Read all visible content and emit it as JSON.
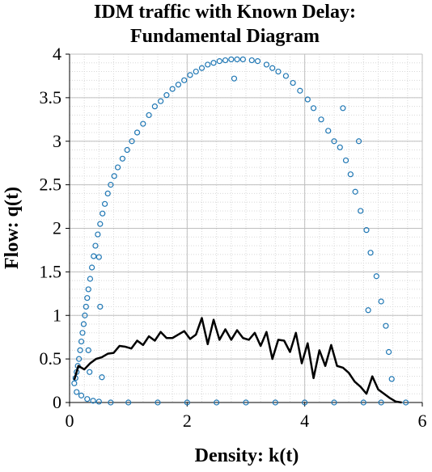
{
  "chart_data": {
    "type": "scatter",
    "title_line1": "IDM traffic with Known Delay:",
    "title_line2": "Fundamental Diagram",
    "xlabel": "Density: k(t)",
    "ylabel": "Flow: q(t)",
    "xlim": [
      0,
      6
    ],
    "ylim": [
      0,
      4
    ],
    "x_ticks": [
      0,
      2,
      4,
      6
    ],
    "y_ticks": [
      0,
      0.5,
      1,
      1.5,
      2,
      2.5,
      3,
      3.5,
      4
    ],
    "x_tick_labels": [
      "0",
      "2",
      "4",
      "6"
    ],
    "y_tick_labels": [
      "0",
      "0.5",
      "1",
      "1.5",
      "2",
      "2.5",
      "3",
      "3.5",
      "4"
    ],
    "grid": true,
    "series": [
      {
        "kind": "scatter",
        "color": "#1f77b4",
        "marker": "open-circle",
        "points": [
          [
            0.08,
            0.22
          ],
          [
            0.1,
            0.28
          ],
          [
            0.12,
            0.35
          ],
          [
            0.14,
            0.42
          ],
          [
            0.16,
            0.5
          ],
          [
            0.18,
            0.6
          ],
          [
            0.2,
            0.7
          ],
          [
            0.22,
            0.8
          ],
          [
            0.24,
            0.9
          ],
          [
            0.26,
            1.0
          ],
          [
            0.28,
            1.1
          ],
          [
            0.3,
            1.2
          ],
          [
            0.32,
            1.3
          ],
          [
            0.35,
            1.42
          ],
          [
            0.38,
            1.55
          ],
          [
            0.41,
            1.68
          ],
          [
            0.44,
            1.8
          ],
          [
            0.48,
            1.93
          ],
          [
            0.52,
            2.05
          ],
          [
            0.56,
            2.17
          ],
          [
            0.6,
            2.28
          ],
          [
            0.65,
            2.4
          ],
          [
            0.7,
            2.5
          ],
          [
            0.76,
            2.6
          ],
          [
            0.82,
            2.7
          ],
          [
            0.9,
            2.8
          ],
          [
            0.98,
            2.9
          ],
          [
            1.06,
            3.0
          ],
          [
            1.15,
            3.1
          ],
          [
            1.25,
            3.2
          ],
          [
            1.35,
            3.3
          ],
          [
            1.45,
            3.4
          ],
          [
            1.55,
            3.46
          ],
          [
            1.65,
            3.53
          ],
          [
            1.75,
            3.6
          ],
          [
            1.85,
            3.65
          ],
          [
            1.95,
            3.7
          ],
          [
            2.05,
            3.76
          ],
          [
            2.15,
            3.8
          ],
          [
            2.25,
            3.84
          ],
          [
            2.35,
            3.88
          ],
          [
            2.45,
            3.9
          ],
          [
            2.55,
            3.92
          ],
          [
            2.65,
            3.93
          ],
          [
            2.75,
            3.94
          ],
          [
            2.85,
            3.94
          ],
          [
            2.95,
            3.94
          ],
          [
            3.1,
            3.93
          ],
          [
            3.2,
            3.92
          ],
          [
            3.35,
            3.88
          ],
          [
            3.45,
            3.84
          ],
          [
            3.55,
            3.8
          ],
          [
            3.68,
            3.75
          ],
          [
            3.8,
            3.67
          ],
          [
            3.92,
            3.58
          ],
          [
            4.05,
            3.48
          ],
          [
            4.15,
            3.38
          ],
          [
            4.28,
            3.25
          ],
          [
            4.4,
            3.12
          ],
          [
            4.5,
            3.0
          ],
          [
            4.6,
            2.93
          ],
          [
            4.7,
            2.78
          ],
          [
            4.78,
            2.62
          ],
          [
            4.86,
            2.42
          ],
          [
            4.95,
            2.2
          ],
          [
            5.05,
            1.98
          ],
          [
            5.12,
            1.72
          ],
          [
            5.22,
            1.45
          ],
          [
            5.3,
            1.16
          ],
          [
            5.38,
            0.88
          ],
          [
            5.43,
            0.58
          ],
          [
            5.48,
            0.27
          ],
          [
            5.72,
            0.0
          ],
          [
            4.92,
            3.0
          ],
          [
            4.65,
            3.38
          ],
          [
            5.08,
            1.06
          ],
          [
            2.8,
            3.72
          ],
          [
            0.5,
            1.67
          ],
          [
            0.52,
            1.1
          ],
          [
            0.55,
            0.29
          ],
          [
            0.32,
            0.6
          ],
          [
            0.34,
            0.35
          ],
          [
            0.12,
            0.12
          ],
          [
            0.2,
            0.08
          ],
          [
            0.3,
            0.04
          ],
          [
            0.4,
            0.02
          ],
          [
            0.5,
            0.01
          ],
          [
            0.7,
            0.0
          ],
          [
            1.0,
            0.0
          ],
          [
            1.5,
            0.0
          ],
          [
            2.0,
            0.0
          ],
          [
            2.5,
            0.0
          ],
          [
            3.0,
            0.0
          ],
          [
            3.5,
            0.0
          ],
          [
            4.0,
            0.0
          ],
          [
            4.5,
            0.0
          ],
          [
            5.0,
            0.0
          ],
          [
            5.3,
            0.0
          ]
        ]
      },
      {
        "kind": "line",
        "color": "#000000",
        "points": [
          [
            0.08,
            0.26
          ],
          [
            0.15,
            0.42
          ],
          [
            0.25,
            0.38
          ],
          [
            0.35,
            0.45
          ],
          [
            0.45,
            0.5
          ],
          [
            0.55,
            0.52
          ],
          [
            0.65,
            0.56
          ],
          [
            0.75,
            0.57
          ],
          [
            0.85,
            0.65
          ],
          [
            0.95,
            0.64
          ],
          [
            1.05,
            0.62
          ],
          [
            1.15,
            0.71
          ],
          [
            1.25,
            0.66
          ],
          [
            1.35,
            0.76
          ],
          [
            1.45,
            0.71
          ],
          [
            1.55,
            0.81
          ],
          [
            1.65,
            0.74
          ],
          [
            1.75,
            0.74
          ],
          [
            1.85,
            0.78
          ],
          [
            1.95,
            0.82
          ],
          [
            2.05,
            0.73
          ],
          [
            2.15,
            0.78
          ],
          [
            2.25,
            0.97
          ],
          [
            2.35,
            0.67
          ],
          [
            2.45,
            0.95
          ],
          [
            2.55,
            0.72
          ],
          [
            2.65,
            0.84
          ],
          [
            2.75,
            0.72
          ],
          [
            2.85,
            0.83
          ],
          [
            2.95,
            0.74
          ],
          [
            3.05,
            0.72
          ],
          [
            3.15,
            0.8
          ],
          [
            3.25,
            0.65
          ],
          [
            3.35,
            0.81
          ],
          [
            3.45,
            0.5
          ],
          [
            3.55,
            0.72
          ],
          [
            3.65,
            0.71
          ],
          [
            3.75,
            0.58
          ],
          [
            3.85,
            0.8
          ],
          [
            3.95,
            0.45
          ],
          [
            4.05,
            0.68
          ],
          [
            4.15,
            0.28
          ],
          [
            4.25,
            0.6
          ],
          [
            4.35,
            0.42
          ],
          [
            4.45,
            0.66
          ],
          [
            4.55,
            0.42
          ],
          [
            4.65,
            0.4
          ],
          [
            4.75,
            0.34
          ],
          [
            4.85,
            0.24
          ],
          [
            4.95,
            0.18
          ],
          [
            5.05,
            0.1
          ],
          [
            5.15,
            0.3
          ],
          [
            5.25,
            0.15
          ],
          [
            5.35,
            0.1
          ],
          [
            5.45,
            0.05
          ],
          [
            5.55,
            0.01
          ],
          [
            5.65,
            0.0
          ]
        ]
      }
    ]
  }
}
